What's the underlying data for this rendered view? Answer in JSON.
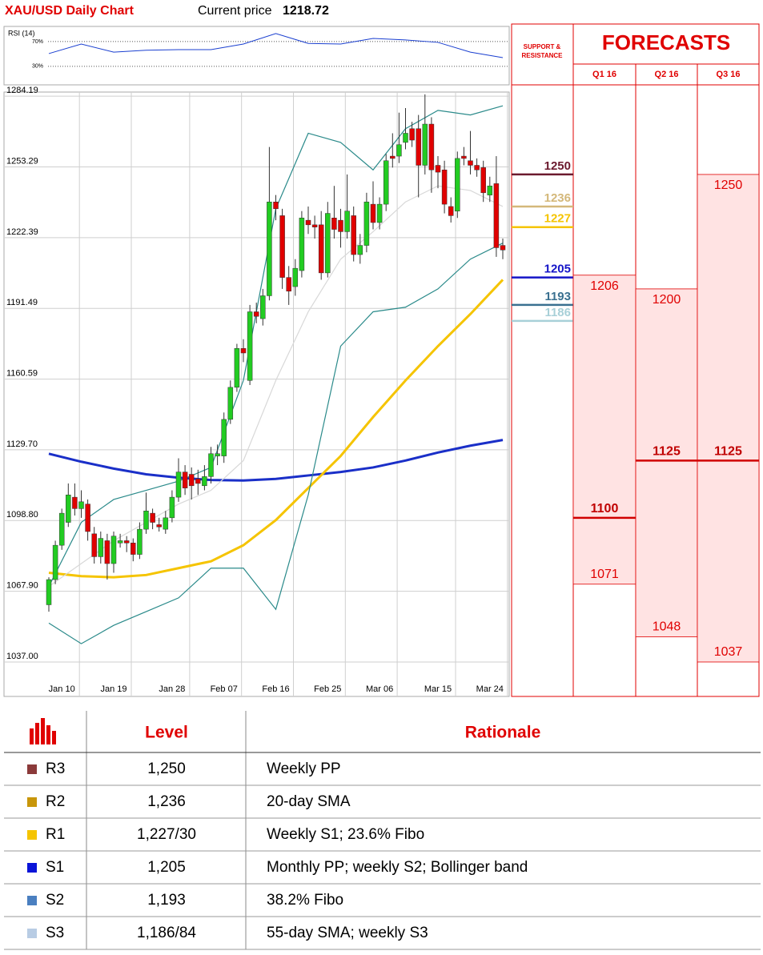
{
  "chart_data": [
    {
      "type": "candlestick",
      "title": "XAU/USD Daily Chart",
      "current_price_label": "Current price",
      "current_price": 1218.72,
      "categories": [
        null,
        null,
        "Jan 10",
        null,
        null,
        null,
        null,
        null,
        null,
        null,
        "Jan 19",
        null,
        null,
        null,
        null,
        null,
        null,
        null,
        null,
        "Jan 28",
        null,
        null,
        null,
        null,
        null,
        null,
        null,
        "Feb 07",
        null,
        null,
        null,
        null,
        null,
        null,
        null,
        "Feb 16",
        null,
        null,
        null,
        null,
        null,
        null,
        null,
        "Feb 25",
        null,
        null,
        null,
        null,
        null,
        null,
        null,
        "Mar 06",
        null,
        null,
        null,
        null,
        null,
        null,
        null,
        null,
        "Mar 15",
        null,
        null,
        null,
        null,
        null,
        null,
        null,
        "Mar 24",
        null,
        null
      ],
      "open": [
        1062,
        1073,
        1088,
        1098,
        1109,
        1104,
        1106,
        1093,
        1083,
        1090,
        1080,
        1089,
        1090,
        1089,
        1084,
        1095,
        1102,
        1097,
        1095,
        1100,
        1109,
        1120,
        1119,
        1117,
        1114,
        1118,
        1127,
        1127,
        1143,
        1157,
        1174,
        1160,
        1190,
        1187,
        1197,
        1238,
        1232,
        1205,
        1201,
        1208,
        1230,
        1228,
        1228,
        1207,
        1231,
        1230,
        1225,
        1232,
        1215,
        1219,
        1237,
        1229,
        1237,
        1258,
        1258,
        1264,
        1270,
        1270,
        1254,
        1272,
        1254,
        1252,
        1236,
        1234,
        1258,
        1256,
        1254,
        1253,
        1241,
        1246,
        1219
      ],
      "high": [
        1074,
        1090,
        1104,
        1115,
        1115,
        1112,
        1108,
        1096,
        1094,
        1093,
        1094,
        1093,
        1092,
        1091,
        1098,
        1111,
        1104,
        1100,
        1103,
        1112,
        1126,
        1123,
        1122,
        1121,
        1123,
        1131,
        1132,
        1146,
        1160,
        1176,
        1178,
        1193,
        1194,
        1200,
        1262,
        1241,
        1235,
        1210,
        1213,
        1234,
        1236,
        1232,
        1234,
        1238,
        1245,
        1235,
        1250,
        1236,
        1224,
        1242,
        1247,
        1240,
        1259,
        1268,
        1277,
        1279,
        1273,
        1276,
        1285,
        1275,
        1258,
        1256,
        1240,
        1260,
        1262,
        1269,
        1257,
        1256,
        1249,
        1258,
        1222
      ],
      "low": [
        1059,
        1071,
        1086,
        1096,
        1101,
        1100,
        1090,
        1080,
        1080,
        1073,
        1076,
        1087,
        1085,
        1081,
        1082,
        1093,
        1095,
        1094,
        1093,
        1098,
        1107,
        1110,
        1108,
        1110,
        1112,
        1115,
        1123,
        1124,
        1141,
        1155,
        1168,
        1158,
        1185,
        1184,
        1195,
        1230,
        1200,
        1193,
        1197,
        1205,
        1224,
        1222,
        1204,
        1205,
        1222,
        1218,
        1222,
        1212,
        1211,
        1216,
        1226,
        1226,
        1234,
        1253,
        1255,
        1261,
        1262,
        1240,
        1250,
        1242,
        1244,
        1233,
        1229,
        1231,
        1254,
        1250,
        1249,
        1238,
        1238,
        1214,
        1213
      ],
      "close": [
        1073,
        1088,
        1102,
        1110,
        1104,
        1107,
        1094,
        1083,
        1091,
        1080,
        1092,
        1090,
        1089,
        1084,
        1095,
        1103,
        1098,
        1096,
        1100,
        1109,
        1120,
        1113,
        1114,
        1115,
        1118,
        1128,
        1128,
        1143,
        1157,
        1174,
        1172,
        1190,
        1188,
        1197,
        1238,
        1235,
        1205,
        1199,
        1209,
        1231,
        1228,
        1227,
        1207,
        1233,
        1226,
        1225,
        1234,
        1215,
        1219,
        1238,
        1229,
        1237,
        1256,
        1257,
        1263,
        1268,
        1265,
        1254,
        1272,
        1252,
        1251,
        1237,
        1232,
        1257,
        1257,
        1254,
        1252,
        1242,
        1245,
        1218,
        1217
      ],
      "up_color": "#22cc22",
      "down_color": "#e00000",
      "overlays": [
        {
          "color": "#1a2fc8",
          "x": [
            0,
            5,
            10,
            15,
            20,
            25,
            30,
            35,
            40,
            45,
            50,
            55,
            60,
            65,
            70
          ],
          "values": [
            1128,
            1124.5,
            1121.5,
            1119,
            1117.5,
            1116.5,
            1116.3,
            1117,
            1118.5,
            1120,
            1122,
            1125,
            1128.5,
            1131.5,
            1134
          ]
        },
        {
          "color": "#f5c400",
          "x": [
            0,
            5,
            10,
            15,
            20,
            25,
            30,
            35,
            40,
            45,
            50,
            55,
            60,
            65,
            70
          ],
          "values": [
            1076,
            1074.5,
            1074,
            1075,
            1078,
            1081,
            1088,
            1099,
            1113,
            1127,
            1144,
            1160,
            1175,
            1189,
            1204
          ]
        },
        {
          "color": "#d8d8d8",
          "x": [
            0,
            5,
            10,
            15,
            20,
            25,
            30,
            35,
            40,
            45,
            50,
            55,
            60,
            65,
            70
          ],
          "values": [
            1070,
            1080,
            1090,
            1098,
            1106,
            1112,
            1125,
            1160,
            1190,
            1213,
            1225,
            1238,
            1245,
            1243,
            1236
          ]
        },
        {
          "color": "#2a8a8a",
          "x": [
            0,
            5,
            10,
            15,
            20,
            25,
            30,
            35,
            40,
            45,
            50,
            55,
            60,
            65,
            70
          ],
          "values": [
            1070,
            1098,
            1108,
            1112,
            1116,
            1122,
            1160,
            1235,
            1268,
            1264,
            1252,
            1270,
            1278,
            1276,
            1280
          ]
        },
        {
          "color": "#2a8a8a",
          "x": [
            0,
            5,
            10,
            15,
            20,
            25,
            30,
            35,
            40,
            45,
            50,
            55,
            60,
            65,
            70
          ],
          "values": [
            1054,
            1045,
            1053,
            1059,
            1065,
            1078,
            1078,
            1060,
            1110,
            1175,
            1190,
            1192,
            1200,
            1213,
            1220
          ]
        }
      ],
      "ylim": [
        1023,
        1286
      ],
      "yticks": [
        {
          "value": 1037,
          "label": "1037.00"
        },
        {
          "value": 1067.9,
          "label": "1067.90"
        },
        {
          "value": 1098.8,
          "label": "1098.80"
        },
        {
          "value": 1129.7,
          "label": "1129.70"
        },
        1160.59,
        {
          "value": 1191.49,
          "label": "1191.49"
        },
        {
          "value": 1222.39,
          "label": "1222.39"
        },
        {
          "value": 1253.29,
          "label": "1253.29"
        },
        {
          "value": 1284.19,
          "label": "1284.19"
        }
      ],
      "grid": true
    },
    {
      "type": "line",
      "title": "RSI (14)",
      "color": "#1a3fd0",
      "x": [
        0,
        5,
        10,
        15,
        20,
        25,
        30,
        35,
        40,
        45,
        50,
        55,
        60,
        65,
        70
      ],
      "values": [
        50.6,
        66,
        53,
        56,
        57,
        57,
        66,
        83,
        67,
        66,
        75,
        72.6,
        68.7,
        53,
        44
      ],
      "ylim": [
        4,
        88
      ],
      "yticks": [
        {
          "value": 70,
          "label": "70%"
        },
        {
          "value": 30,
          "label": "30%"
        }
      ]
    }
  ],
  "support_resistance": {
    "title_lines": [
      "SUPPORT &",
      "RESISTANCE"
    ],
    "levels": [
      {
        "value": 1250,
        "color": "#6b1a2e"
      },
      {
        "value": 1236,
        "color": "#d4b87a"
      },
      {
        "value": 1227,
        "color": "#f5c400"
      },
      {
        "value": 1205,
        "color": "#1414c8"
      },
      {
        "value": 1193,
        "color": "#3a7090"
      },
      {
        "value": 1186,
        "color": "#a8d0d8"
      }
    ]
  },
  "forecasts": {
    "title": "FORECASTS",
    "columns": [
      {
        "label": "Q1 16",
        "high": 1206,
        "low": 1071,
        "average": 1100
      },
      {
        "label": "Q2 16",
        "high": 1200,
        "low": 1048,
        "average": 1125
      },
      {
        "label": "Q3 16",
        "high": 1250,
        "low": 1037,
        "average": 1125
      }
    ]
  },
  "table": {
    "headers": [
      "Level",
      "Rationale"
    ],
    "rows": [
      {
        "label": "R3",
        "level": "1,250",
        "rationale": "Weekly PP",
        "color": "#8b3a3a"
      },
      {
        "label": "R2",
        "level": "1,236",
        "rationale": "20-day SMA",
        "color": "#c8960a"
      },
      {
        "label": "R1",
        "level": "1,227/30",
        "rationale": "Weekly S1; 23.6% Fibo",
        "color": "#f5c400"
      },
      {
        "label": "S1",
        "level": "1,205",
        "rationale": "Monthly PP; weekly S2; Bollinger band",
        "color": "#0a14d8"
      },
      {
        "label": "S2",
        "level": "1,193",
        "rationale": "38.2% Fibo",
        "color": "#4a7fc0"
      },
      {
        "label": "S3",
        "level": "1,186/84",
        "rationale": "55-day SMA; weekly S3",
        "color": "#b8cce4"
      }
    ]
  }
}
